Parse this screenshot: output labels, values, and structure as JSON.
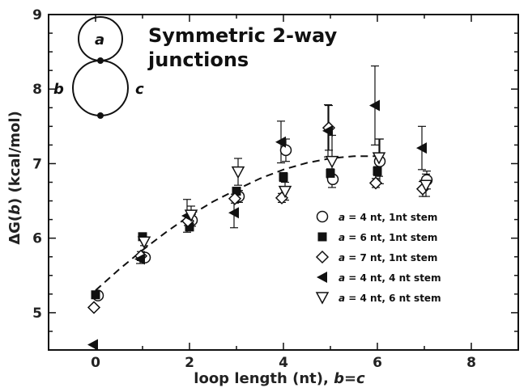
{
  "chart_data": {
    "type": "scatter",
    "title": "Symmetric 2-way junctions",
    "xlabel": "loop length (nt), b=c",
    "ylabel": "ΔG(b) (kcal/mol)",
    "xlim": [
      -1,
      9
    ],
    "ylim": [
      4.5,
      9
    ],
    "xticks": [
      0,
      2,
      4,
      6,
      8
    ],
    "yticks": [
      5,
      6,
      7,
      8,
      9
    ],
    "grid": false,
    "legend_position": "right",
    "inset_labels": [
      "a",
      "b",
      "c"
    ],
    "series": [
      {
        "name": "a = 4 nt, 1nt stem",
        "marker": "open-circle",
        "x": [
          0,
          1,
          2,
          3,
          4,
          5,
          6,
          7
        ],
        "y": [
          5.23,
          5.74,
          6.24,
          6.56,
          7.18,
          6.79,
          7.03,
          6.78
        ],
        "err": [
          0.05,
          0.05,
          0.08,
          0.08,
          0.15,
          0.05,
          0.3,
          0.12
        ]
      },
      {
        "name": "a = 6 nt, 1nt stem",
        "marker": "filled-square",
        "x": [
          0,
          1,
          2,
          3,
          4,
          5,
          6
        ],
        "y": [
          5.24,
          6.02,
          6.15,
          6.63,
          6.82,
          6.87,
          6.9
        ],
        "err": [
          0.04,
          0.04,
          0.05,
          0.05,
          0.06,
          0.06,
          0.06
        ]
      },
      {
        "name": "a = 7 nt, 1nt stem",
        "marker": "open-diamond",
        "x": [
          0,
          1,
          2,
          3,
          4,
          5,
          6,
          7
        ],
        "y": [
          5.07,
          5.76,
          6.23,
          6.53,
          6.54,
          7.48,
          6.74,
          6.66
        ],
        "err": [
          0.04,
          0.06,
          0.06,
          0.06,
          0.06,
          0.3,
          0.06,
          0.1
        ]
      },
      {
        "name": "a = 4 nt, 4 nt stem",
        "marker": "filled-left-triangle",
        "x": [
          0,
          1,
          2,
          3,
          4,
          5,
          6,
          7
        ],
        "y": [
          4.57,
          5.72,
          6.3,
          6.34,
          7.29,
          7.44,
          7.78,
          7.21
        ],
        "err": [
          0.02,
          0.06,
          0.22,
          0.2,
          0.28,
          0.35,
          0.53,
          0.29
        ]
      },
      {
        "name": "a = 4 nt, 6 nt stem",
        "marker": "open-down-triangle",
        "x": [
          1,
          2,
          3,
          4,
          5,
          6,
          7
        ],
        "y": [
          5.95,
          6.31,
          6.89,
          6.63,
          7.03,
          7.08,
          6.71
        ],
        "err": [
          0.05,
          0.12,
          0.18,
          0.12,
          0.35,
          0.25,
          0.15
        ]
      }
    ],
    "fit_curve": {
      "style": "dashed",
      "x": [
        0,
        0.5,
        1,
        1.5,
        2,
        2.5,
        3,
        3.5,
        4,
        4.5,
        5,
        5.5,
        6
      ],
      "y": [
        5.3,
        5.58,
        5.84,
        6.08,
        6.3,
        6.49,
        6.65,
        6.8,
        6.92,
        7.01,
        7.07,
        7.1,
        7.1
      ]
    }
  }
}
